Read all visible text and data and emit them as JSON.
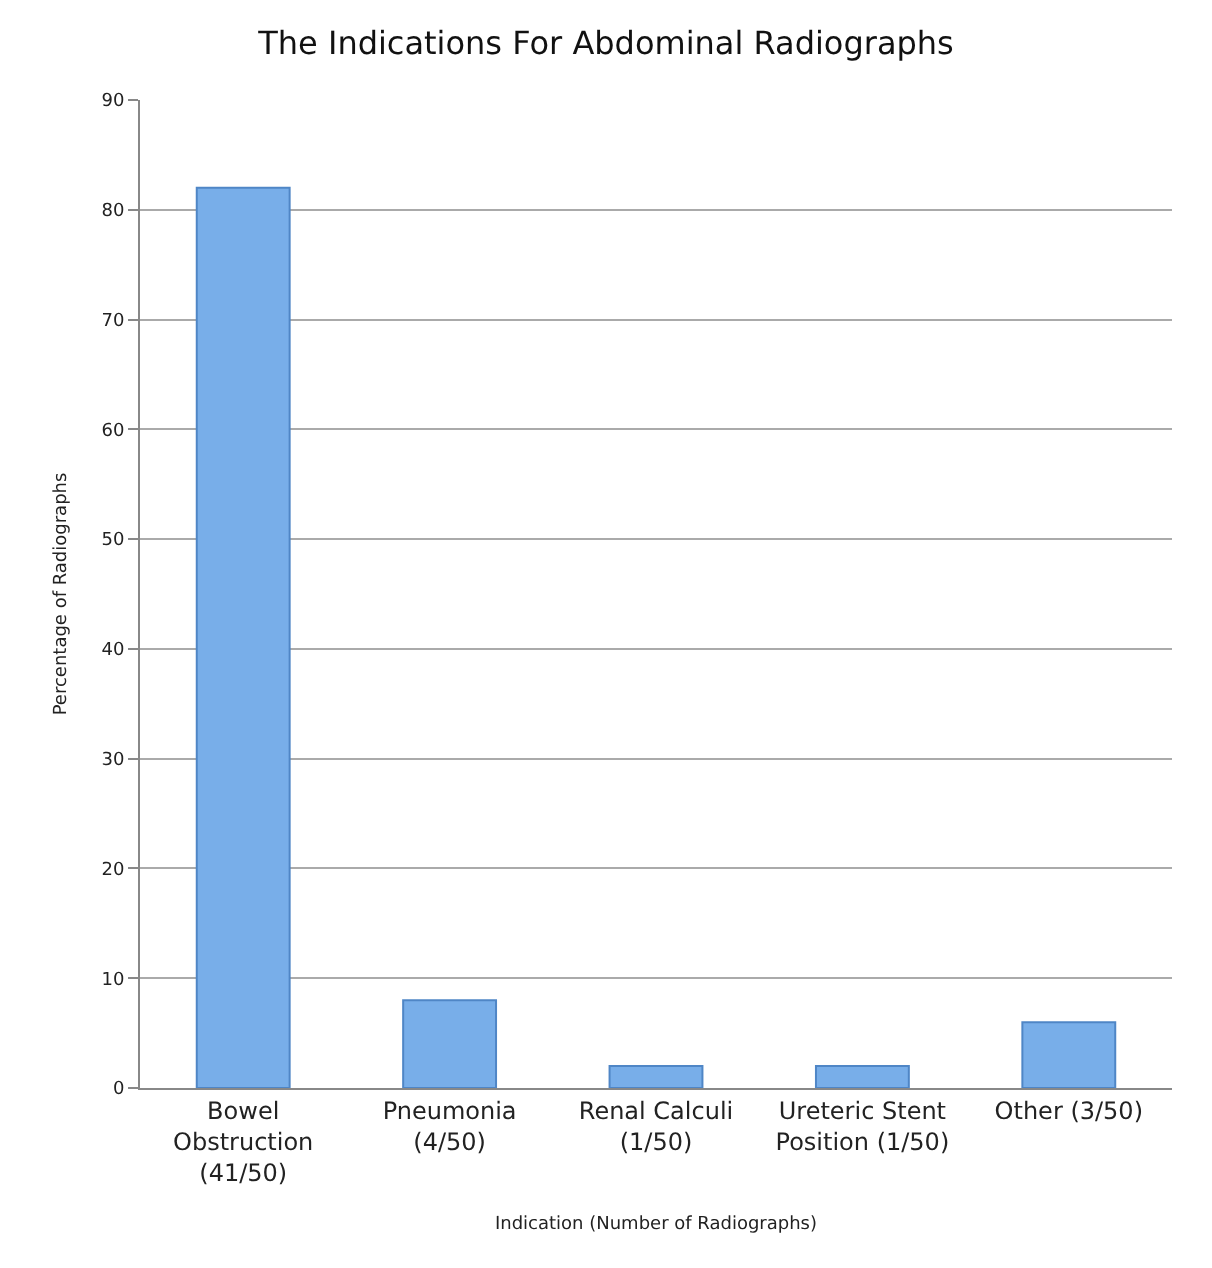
{
  "chart_data": {
    "type": "bar",
    "title": "The Indications For Abdominal Radiographs",
    "xlabel": "Indication (Number of Radiographs)",
    "ylabel": "Percentage of Radiographs",
    "categories": [
      "Bowel Obstruction (41/50)",
      "Pneumonia (4/50)",
      "Renal Calculi (1/50)",
      "Ureteric Stent Position (1/50)",
      "Other (3/50)"
    ],
    "values": [
      82,
      8,
      2,
      2,
      6
    ],
    "color": "#78aee9",
    "ylim": [
      0,
      90
    ],
    "yticks": [
      0,
      10,
      20,
      30,
      40,
      50,
      60,
      70,
      80,
      90
    ],
    "grid": "y"
  }
}
